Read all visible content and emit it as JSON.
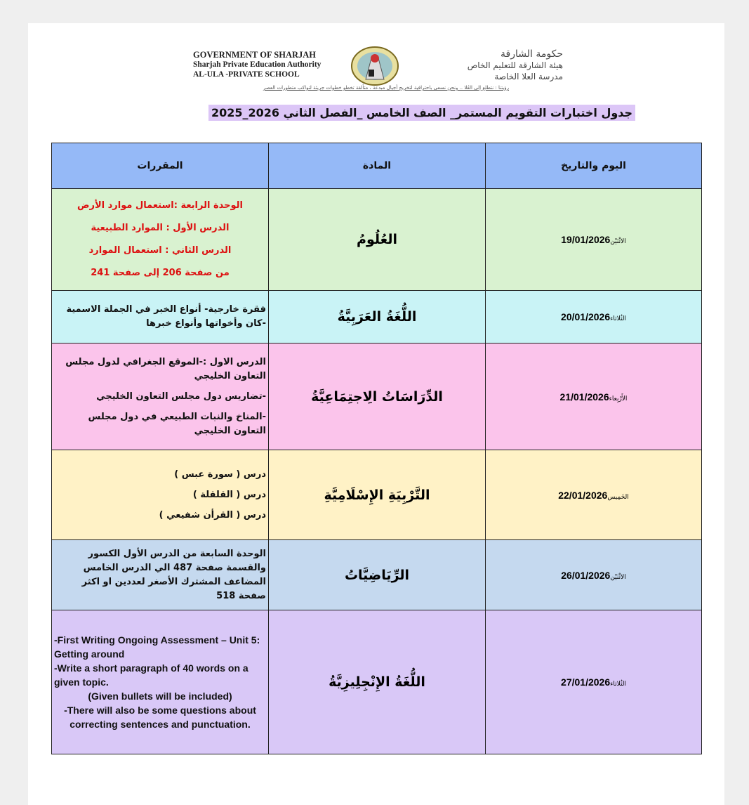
{
  "header": {
    "english": [
      "GOVERNMENT OF SHARJAH",
      "Sharjah Private Education Authority",
      "AL-ULA -PRIVATE SCHOOL"
    ],
    "arabic": [
      "حكومة الشارقة",
      "هيئة الشارقة للتعليم الخاص",
      "مدرسة العلا الخاصة"
    ],
    "vision": "رؤيتنا : نتطلع إلى العُلا .. ونحن نسعى باحترافية لتخريج أجيال مبدعة ، متألقة تخطو خطوات جريئة لتواكب متطورات العصر",
    "title": "جدول اختبارات التقويم المستمر_ الصف الخامس _الفصل الثاني 2026_2025"
  },
  "table": {
    "columns": [
      "اليوم والتاريخ",
      "المادة",
      "المقررات"
    ],
    "rows": [
      {
        "day": "الاثْنَيْن",
        "date": "19/01/2026",
        "subject": "العُلُومُ",
        "color": "#d9f2d0",
        "content": [
          "الوحدة الرابعة :استعمال موارد الأرض",
          "الدرس الأول : الموارد الطبيعية",
          "الدرس الثاني : استعمال الموارد",
          "من صفحة 206 إلى صفحة 241"
        ]
      },
      {
        "day": "الثُلاثاء",
        "date": "20/01/2026",
        "subject": "اللُّغَةُ العَرَبِيَّةُ",
        "color": "#c9f3f6",
        "content": [
          "فقرة خارجية- أنواع الخبر في الجملة الاسمية -كان وأخواتها وأنواع خبرها"
        ]
      },
      {
        "day": "الأَرْبِعاء",
        "date": "21/01/2026",
        "subject": "الدِّرَاسَاتُ الِاجتِمَاعِيَّةُ",
        "color": "#fbc4eb",
        "content": [
          "الدرس الاول :-الموقع الجغرافي لدول مجلس التعاون الخليجي",
          "-تضاريس دول مجلس التعاون الخليجي",
          "-المناخ والنبات الطبيعي في دول مجلس التعاون الخليجي"
        ]
      },
      {
        "day": "الخَمِيس",
        "date": "22/01/2026",
        "subject": "التَّرْبِيَةِ الإِسْلَامِيَّةِ",
        "color": "#fff2c6",
        "content": [
          "درس ( سورة عبس )",
          "درس ( القلقلة )",
          "درس ( القرأن شفيعي )"
        ]
      },
      {
        "day": "الاثْنَيْن",
        "date": "26/01/2026",
        "subject": "الرِّيَاضِيَّاتُ",
        "color": "#c5d9ef",
        "content": [
          "الوحدة السابعة من الدرس الأول الكسور والقسمة صفحة 487 الي الدرس الخامس المضاعف المشترك الأصغر لعددين او اكثر صفحة 518"
        ]
      },
      {
        "day": "الثُلاثاء",
        "date": "27/01/2026",
        "subject": "اللُّغَةُ الإِنْجِلِيزِيَّةُ",
        "color": "#d9c8f7",
        "content": [
          "-First Writing Ongoing Assessment – Unit 5: Getting around",
          "-Write a short paragraph of 40 words on a given topic.",
          "(Given bullets will be included)",
          "-There will also be some questions about correcting sentences and punctuation."
        ]
      }
    ]
  }
}
